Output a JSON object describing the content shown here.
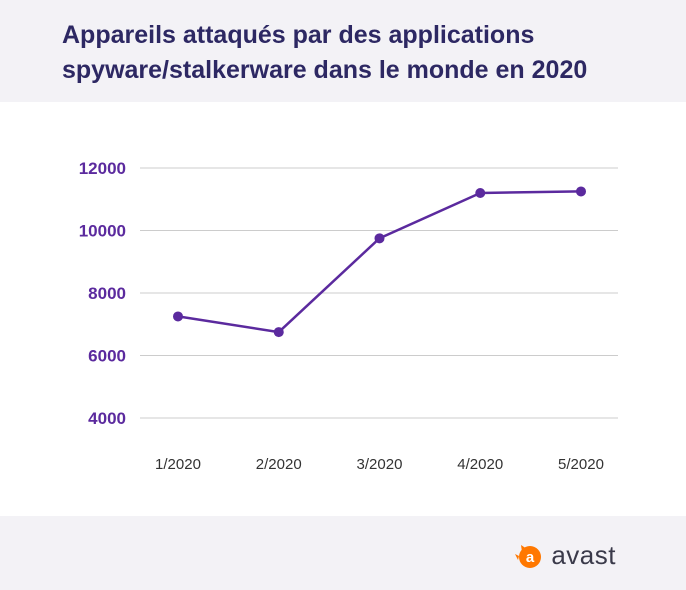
{
  "title_lines": [
    "Appareils attaqués par des applications",
    "spyware/stalkerware dans le monde en 2020"
  ],
  "brand": {
    "name": "avast",
    "accent": "#ff7800",
    "text_color": "#3a3a4a"
  },
  "chart_data": {
    "type": "line",
    "title": "Appareils attaqués par des applications spyware/stalkerware dans le monde en 2020",
    "categories": [
      "1/2020",
      "2/2020",
      "3/2020",
      "4/2020",
      "5/2020"
    ],
    "series": [
      {
        "values": [
          7250,
          6750,
          9750,
          11200,
          11250
        ],
        "color": "#5b2a9e"
      }
    ],
    "yticks": [
      4000,
      6000,
      8000,
      10000,
      12000
    ],
    "ylim": [
      4000,
      12000
    ],
    "xlabel": "",
    "ylabel": "",
    "grid": true,
    "legend": "none",
    "colors": {
      "line": "#5b2a9e",
      "grid": "#cccccc",
      "tick_y": "#5b2a9e",
      "tick_x": "#333333"
    }
  }
}
